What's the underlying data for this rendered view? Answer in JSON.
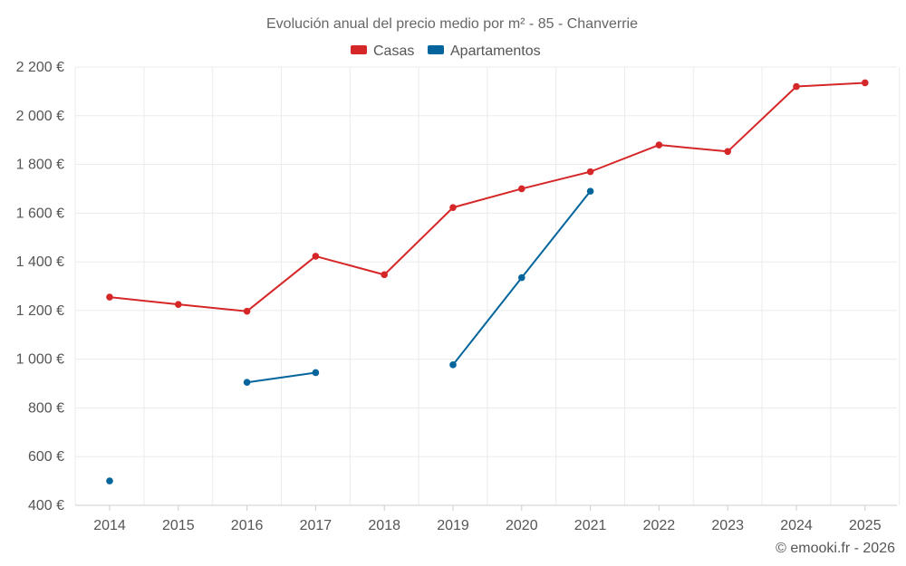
{
  "chart_data": {
    "type": "line",
    "title": "Evolución anual del precio medio por m² - 85 - Chanverrie",
    "x": [
      2014,
      2015,
      2016,
      2017,
      2018,
      2019,
      2020,
      2021,
      2022,
      2023,
      2024,
      2025
    ],
    "x_tick_labels": [
      "2014",
      "2015",
      "2016",
      "2017",
      "2018",
      "2019",
      "2020",
      "2021",
      "2022",
      "2023",
      "2024",
      "2025"
    ],
    "ylim": [
      400,
      2200
    ],
    "y_ticks": [
      400,
      600,
      800,
      1000,
      1200,
      1400,
      1600,
      1800,
      2000,
      2200
    ],
    "y_tick_labels": [
      "400 €",
      "600 €",
      "800 €",
      "1 000 €",
      "1 200 €",
      "1 400 €",
      "1 600 €",
      "1 800 €",
      "2 000 €",
      "2 200 €"
    ],
    "grid": true,
    "legend_position": "top-center",
    "series": [
      {
        "name": "Casas",
        "color": "#d62728",
        "values": [
          1255,
          1225,
          1197,
          1423,
          1347,
          1623,
          1700,
          1770,
          1880,
          1853,
          2120,
          2135
        ]
      },
      {
        "name": "Apartamentos",
        "color": "#03659c",
        "values": [
          500,
          null,
          905,
          945,
          null,
          977,
          1335,
          1690,
          null,
          null,
          null,
          null
        ]
      }
    ]
  },
  "credit": "© emooki.fr - 2026"
}
